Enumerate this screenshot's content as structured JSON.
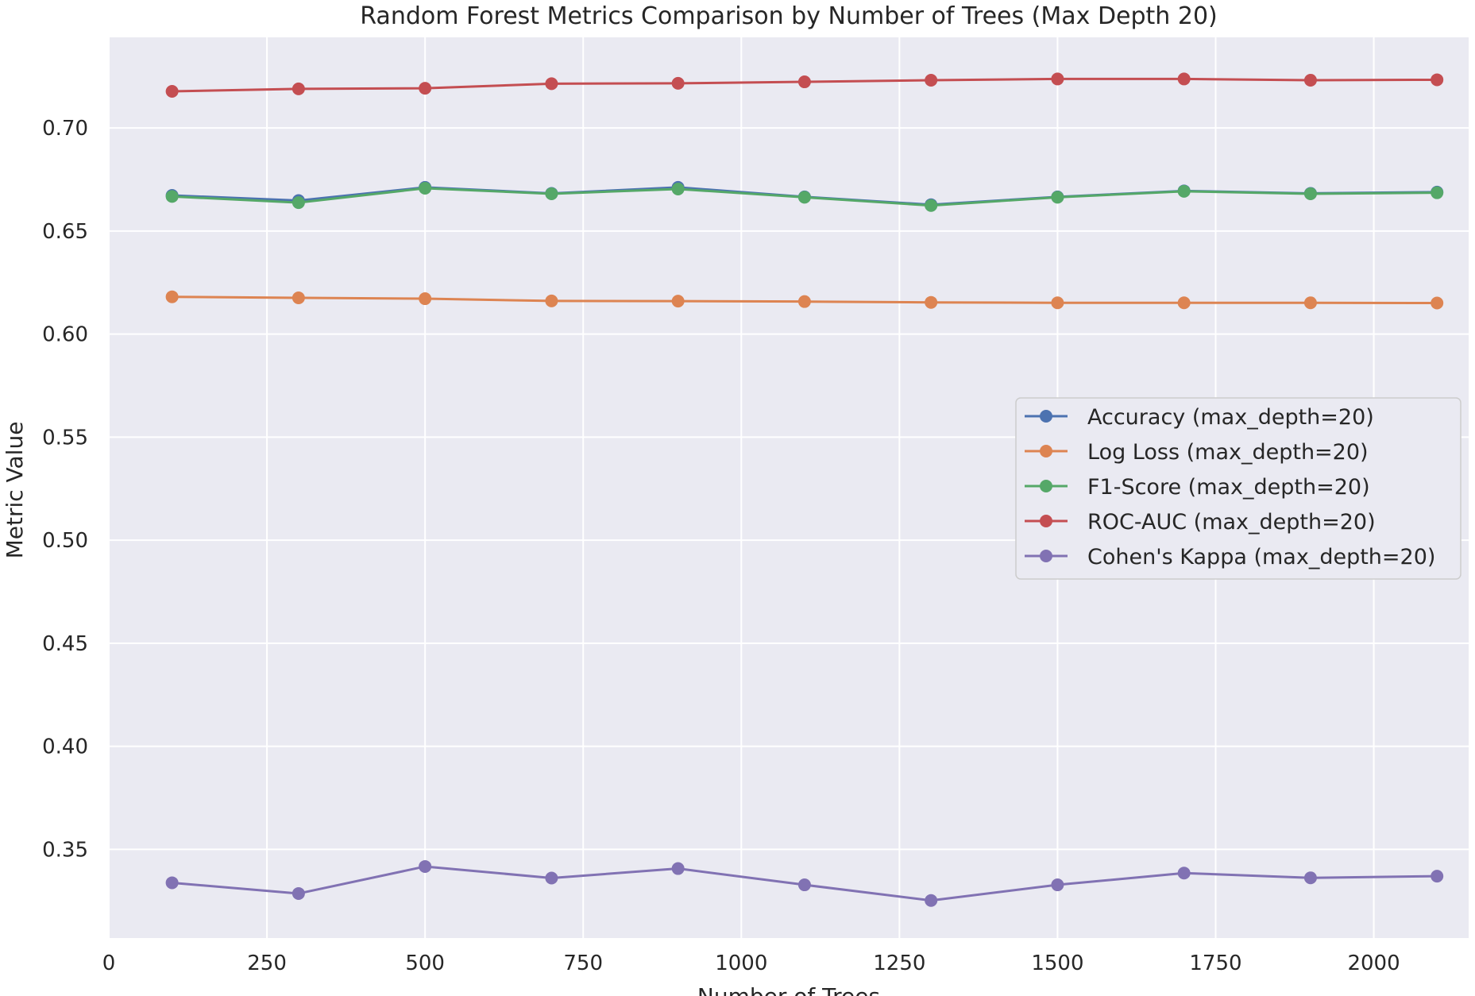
{
  "chart_data": {
    "type": "line",
    "title": "Random Forest Metrics Comparison by Number of Trees (Max Depth 20)",
    "xlabel": "Number of Trees",
    "ylabel": "Metric Value",
    "xlim": [
      0,
      2150
    ],
    "ylim": [
      0.307,
      0.744
    ],
    "xticks": [
      0,
      250,
      500,
      750,
      1000,
      1250,
      1500,
      1750,
      2000
    ],
    "xtick_labels": [
      "0",
      "250",
      "500",
      "750",
      "1000",
      "1250",
      "1500",
      "1750",
      "2000"
    ],
    "yticks": [
      0.35,
      0.4,
      0.45,
      0.5,
      0.55,
      0.6,
      0.65,
      0.7
    ],
    "ytick_labels": [
      "0.35",
      "0.40",
      "0.45",
      "0.50",
      "0.55",
      "0.60",
      "0.65",
      "0.70"
    ],
    "grid": true,
    "legend_position": "center-right",
    "x": [
      100,
      300,
      500,
      700,
      900,
      1100,
      1300,
      1500,
      1700,
      1900,
      2100
    ],
    "series": [
      {
        "name": "Accuracy (max_depth=20)",
        "color": "#4c72b0",
        "values": [
          0.6673,
          0.6648,
          0.6712,
          0.6683,
          0.6712,
          0.6666,
          0.6628,
          0.6666,
          0.6695,
          0.6683,
          0.6689
        ]
      },
      {
        "name": "Log Loss (max_depth=20)",
        "color": "#dd8452",
        "values": [
          0.6181,
          0.6176,
          0.6172,
          0.6161,
          0.616,
          0.6158,
          0.6154,
          0.6152,
          0.6152,
          0.6152,
          0.6151
        ]
      },
      {
        "name": "F1-Score (max_depth=20)",
        "color": "#55a868",
        "values": [
          0.6668,
          0.6638,
          0.6708,
          0.6681,
          0.6704,
          0.6664,
          0.6624,
          0.6664,
          0.6693,
          0.6681,
          0.6686
        ]
      },
      {
        "name": "ROC-AUC (max_depth=20)",
        "color": "#c44e52",
        "values": [
          0.7178,
          0.719,
          0.7193,
          0.7215,
          0.7217,
          0.7224,
          0.7232,
          0.7238,
          0.7238,
          0.7232,
          0.7234
        ]
      },
      {
        "name": "Cohen's Kappa (max_depth=20)",
        "color": "#8172b3",
        "values": [
          0.3338,
          0.3286,
          0.3417,
          0.3361,
          0.3407,
          0.3328,
          0.3252,
          0.3328,
          0.3385,
          0.3362,
          0.337
        ]
      }
    ]
  }
}
